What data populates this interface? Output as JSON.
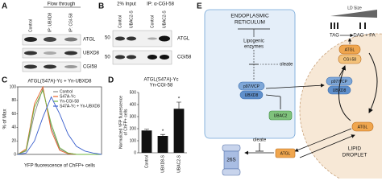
{
  "panel_a": {
    "label": "A",
    "header": "Flow through",
    "columns": [
      "Control",
      "IP: UBXD8",
      "IP: CGI-58"
    ],
    "rows": [
      "ATGL",
      "UBXD8",
      "CGI58"
    ]
  },
  "panel_b": {
    "label": "B",
    "headers": [
      "2% Input",
      "IP: α-CGI-58"
    ],
    "columns": [
      "Control",
      "UBAC2-S",
      "Control",
      "UBAC2-S"
    ],
    "markers": [
      "50",
      "50"
    ],
    "rows": [
      "ATGL",
      "CGI58"
    ]
  },
  "chart_data": [
    {
      "panel_label": "C",
      "type": "line",
      "title": "ATGL(S47A)-Yc + Yn-UBXD8",
      "x_label": "YFP fluorescence of ChFP+ cells",
      "y_label": "% of Max",
      "xlim": [
        0,
        5
      ],
      "ylim": [
        0,
        100
      ],
      "yticks": [
        0,
        20,
        40,
        60,
        80,
        100
      ],
      "x": [
        0,
        0.5,
        1,
        1.5,
        2,
        2.5,
        3,
        3.5,
        4,
        4.5,
        5
      ],
      "series": [
        {
          "name": "Control",
          "color": "#888888",
          "values": [
            0,
            5,
            60,
            98,
            40,
            8,
            2,
            0,
            0,
            0,
            0
          ]
        },
        {
          "name": "S47A-Yc",
          "color": "#e8632b",
          "values": [
            0,
            8,
            75,
            100,
            35,
            6,
            1,
            0,
            0,
            0,
            0
          ]
        },
        {
          "name": "Yn-CGI-58",
          "color": "#6cb33f",
          "values": [
            0,
            6,
            70,
            95,
            45,
            10,
            2,
            0,
            0,
            0,
            0
          ]
        },
        {
          "name": "S47A-Yc + Yn-UBXD8",
          "color": "#3a5fcd",
          "values": [
            0,
            2,
            20,
            55,
            85,
            60,
            30,
            12,
            5,
            2,
            0
          ]
        }
      ]
    },
    {
      "panel_label": "D",
      "type": "bar",
      "title_lines": [
        "ATGL(S47A)-Yc",
        "Yn-CGI-58"
      ],
      "y_label_lines": [
        "Normalized YFP fluorescence",
        "of ChFP+ cells"
      ],
      "categories": [
        "Control",
        "UBXD8-S",
        "UBAC2-S"
      ],
      "values": [
        185,
        140,
        365
      ],
      "errors": [
        10,
        12,
        55
      ],
      "significance": [
        null,
        "*",
        "*"
      ],
      "color": "#111111",
      "ylim": [
        0,
        500
      ],
      "yticks": [
        0,
        100,
        200,
        300,
        400,
        500
      ]
    }
  ],
  "panel_e": {
    "label": "E",
    "er_title_lines": [
      "ENDOPLASMIC",
      "RETICULUM"
    ],
    "lipogenic_lines": [
      "Lipogenic",
      "enzymes"
    ],
    "oleate_er": "oleate",
    "p97_er": "p97/VCP",
    "ubxd8_er": "UBXD8",
    "ubac2": "UBAC2",
    "ld_size": "LD Size",
    "tag": "TAG",
    "dag_fa": "DAG + FA",
    "atgl_ld": "ATGL",
    "cgi58": "CGI-58",
    "p97_ld": "p97/VCP",
    "ubxd8_ld": "UBXD8",
    "atgl_mid": "ATGL",
    "proteasome": "26S",
    "oleate_cyto": "oleate",
    "atgl_cyto": "ATGL",
    "ld_title_lines": [
      "LIPID",
      "DROPLET"
    ]
  }
}
